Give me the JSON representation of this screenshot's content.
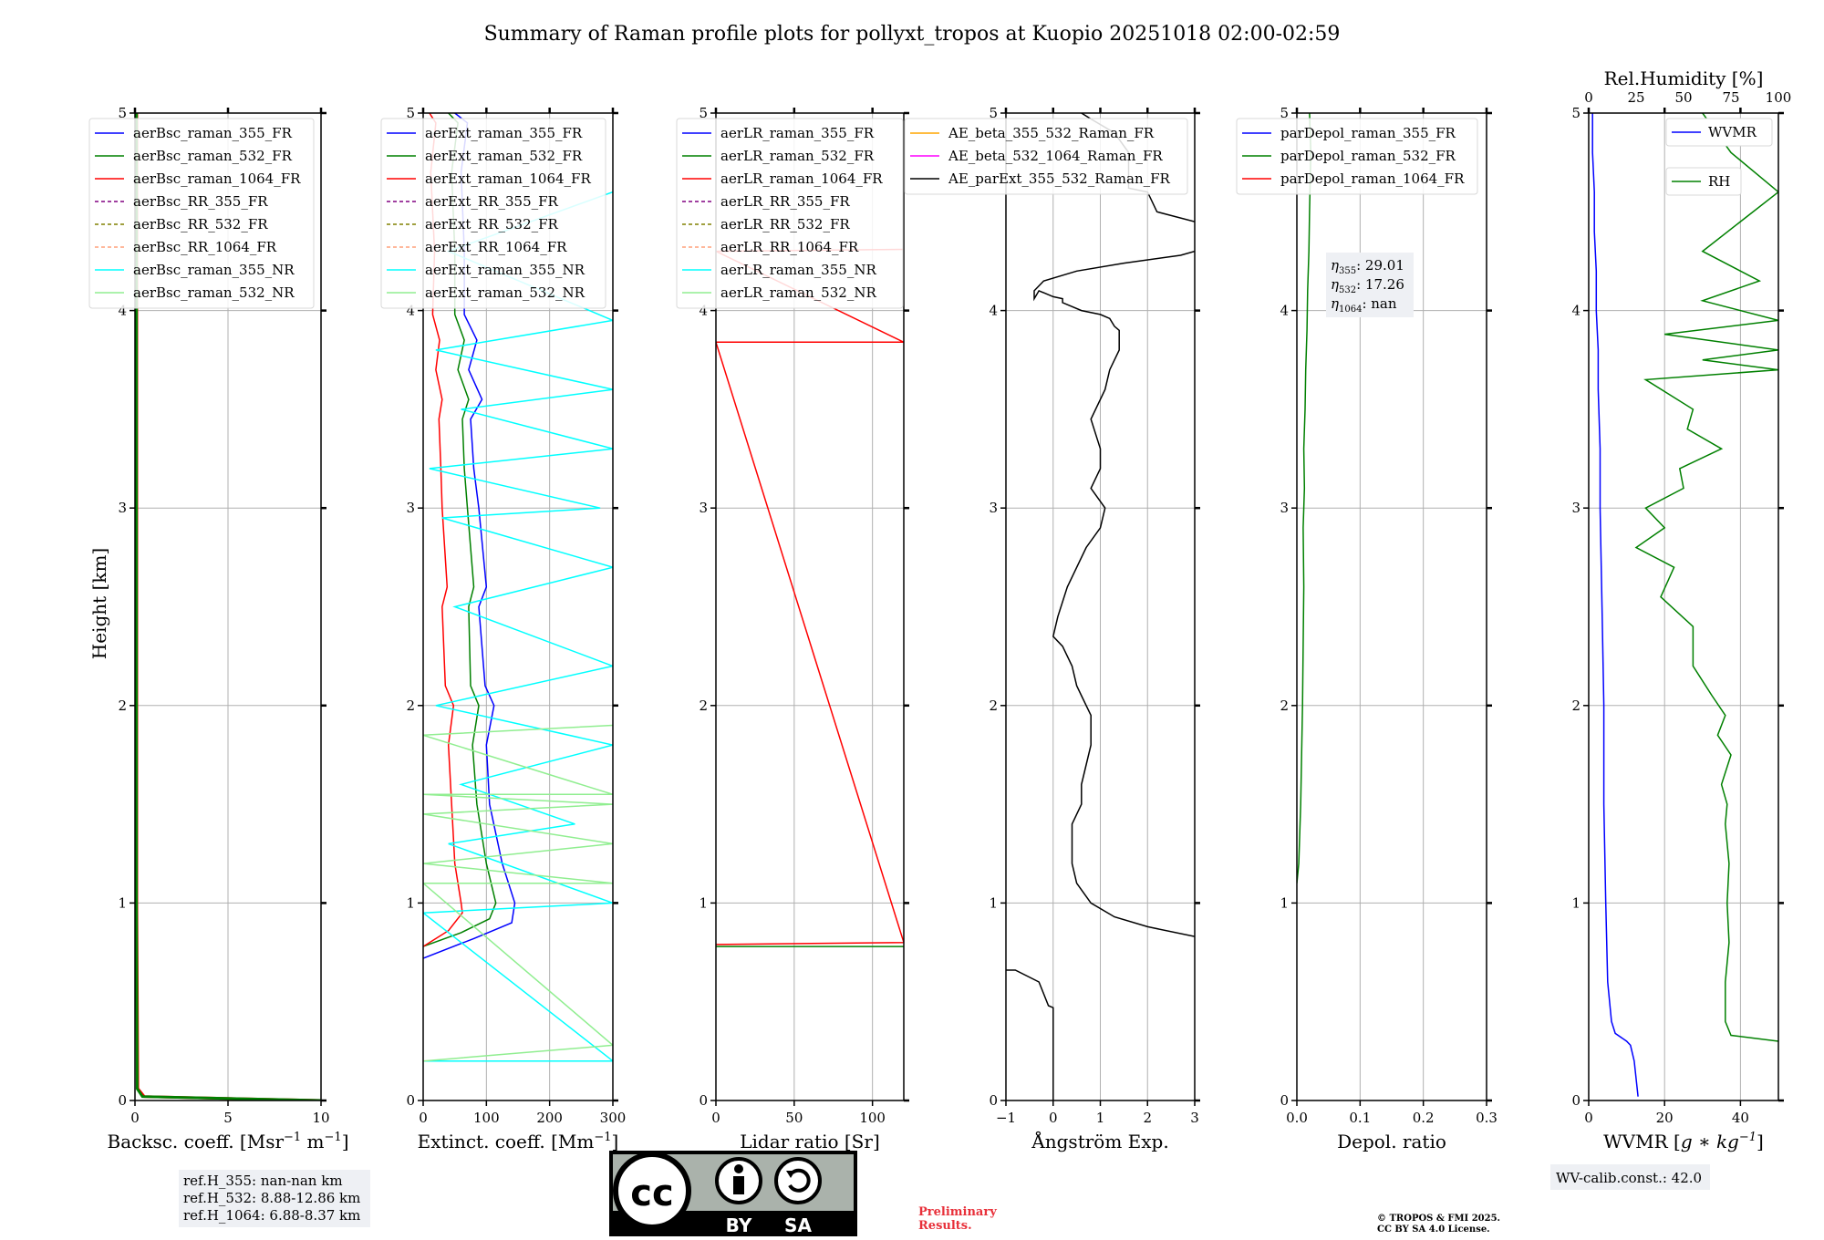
{
  "title": "Summary of Raman profile plots for pollyxt_tropos at Kuopio 20251018 02:00-02:59",
  "shared_ylabel": "Height [km]",
  "y_range": [
    0,
    5
  ],
  "y_ticks": [
    "0",
    "1",
    "2",
    "3",
    "4",
    "5"
  ],
  "colors": {
    "blue": "#0000ff",
    "green": "#008000",
    "red": "#ff0000",
    "purple": "#800080",
    "olive": "#808000",
    "salmon": "#ffa07a",
    "cyan": "#00ffff",
    "lightgreen": "#90ee90",
    "orange": "#ffa500",
    "magenta": "#ff00ff",
    "black": "#000000"
  },
  "chart_data": [
    {
      "type": "line",
      "xlabel": "Backsc. coeff. [Msr",
      "xlabel_sup1": "−1",
      "xlabel_mid": " m",
      "xlabel_sup2": "−1",
      "xlabel_end": "]",
      "xlim": [
        0,
        10
      ],
      "xticks": [
        "0",
        "5",
        "10"
      ],
      "grid": true,
      "legend_position": "top-right",
      "legend": [
        "aerBsc_raman_355_FR",
        "aerBsc_raman_532_FR",
        "aerBsc_raman_1064_FR",
        "aerBsc_RR_355_FR",
        "aerBsc_RR_532_FR",
        "aerBsc_RR_1064_FR",
        "aerBsc_raman_355_NR",
        "aerBsc_raman_532_NR"
      ],
      "series": [
        {
          "name": "aerBsc_raman_1064_FR",
          "x": [
            10,
            0.5,
            0.15,
            0.1,
            0.1
          ],
          "y": [
            0.0,
            0.02,
            0.06,
            1.0,
            5.0
          ]
        },
        {
          "name": "aerBsc_raman_532_FR",
          "x": [
            10,
            0.4,
            0.12,
            0.08,
            0.08
          ],
          "y": [
            0.0,
            0.02,
            0.06,
            1.0,
            5.0
          ]
        }
      ]
    },
    {
      "type": "line",
      "xlabel": "Extinct. coeff. [Mm",
      "xlabel_sup1": "−1",
      "xlabel_end": "]",
      "xlim": [
        0,
        300
      ],
      "xticks": [
        "0",
        "100",
        "200",
        "300"
      ],
      "grid": true,
      "legend_position": "top-right",
      "legend": [
        "aerExt_raman_355_FR",
        "aerExt_raman_532_FR",
        "aerExt_raman_1064_FR",
        "aerExt_RR_355_FR",
        "aerExt_RR_532_FR",
        "aerExt_RR_1064_FR",
        "aerExt_raman_355_NR",
        "aerExt_raman_532_NR"
      ],
      "series": [
        {
          "name": "aerExt_raman_355_FR",
          "x": [
            0,
            80,
            140,
            145,
            125,
            105,
            100,
            112,
            98,
            88,
            100,
            88,
            80,
            75,
            93,
            72,
            85,
            65,
            65,
            60,
            70,
            50
          ],
          "y": [
            0.72,
            0.82,
            0.9,
            1.0,
            1.2,
            1.5,
            1.8,
            2.0,
            2.1,
            2.5,
            2.6,
            3.0,
            3.2,
            3.45,
            3.55,
            3.7,
            3.85,
            3.98,
            4.3,
            4.7,
            4.95,
            5.0
          ]
        },
        {
          "name": "aerExt_raman_532_FR",
          "x": [
            0,
            60,
            105,
            115,
            100,
            85,
            78,
            88,
            75,
            72,
            80,
            70,
            65,
            62,
            72,
            55,
            65,
            50,
            50,
            45,
            55,
            40
          ],
          "y": [
            0.78,
            0.85,
            0.92,
            1.0,
            1.2,
            1.5,
            1.8,
            2.0,
            2.1,
            2.5,
            2.6,
            3.0,
            3.2,
            3.45,
            3.55,
            3.7,
            3.85,
            3.98,
            4.3,
            4.7,
            4.95,
            5.0
          ]
        },
        {
          "name": "aerExt_raman_1064_FR",
          "x": [
            0,
            40,
            62,
            60,
            50,
            45,
            40,
            48,
            35,
            30,
            38,
            30,
            28,
            25,
            30,
            20,
            26,
            15,
            18,
            12,
            20,
            10
          ],
          "y": [
            0.78,
            0.86,
            0.95,
            1.0,
            1.2,
            1.5,
            1.8,
            2.0,
            2.1,
            2.5,
            2.6,
            3.0,
            3.2,
            3.45,
            3.55,
            3.7,
            3.85,
            3.98,
            4.3,
            4.7,
            4.95,
            5.0
          ]
        },
        {
          "name": "aerExt_raman_355_NR",
          "x": [
            0,
            300,
            0,
            300,
            40,
            240,
            60,
            300,
            20,
            300,
            50,
            300,
            30,
            280,
            10,
            300,
            60,
            300,
            20,
            300,
            40,
            300
          ],
          "y": [
            0.2,
            0.2,
            0.95,
            1.0,
            1.3,
            1.4,
            1.6,
            1.8,
            2.0,
            2.2,
            2.5,
            2.7,
            2.95,
            3.0,
            3.2,
            3.3,
            3.5,
            3.6,
            3.8,
            3.95,
            4.3,
            4.6
          ]
        },
        {
          "name": "aerExt_raman_532_NR",
          "x": [
            0,
            300,
            0,
            300,
            0,
            300,
            0,
            300,
            0,
            300,
            0,
            300
          ],
          "y": [
            0.2,
            0.28,
            1.1,
            1.1,
            1.2,
            1.3,
            1.45,
            1.5,
            1.55,
            1.55,
            1.85,
            1.9
          ]
        }
      ]
    },
    {
      "type": "line",
      "xlabel": "Lidar ratio [Sr]",
      "xlim": [
        0,
        120
      ],
      "xticks": [
        "0",
        "50",
        "100"
      ],
      "grid": true,
      "legend_position": "top-right",
      "legend": [
        "aerLR_raman_355_FR",
        "aerLR_raman_532_FR",
        "aerLR_raman_1064_FR",
        "aerLR_RR_355_FR",
        "aerLR_RR_532_FR",
        "aerLR_RR_1064_FR",
        "aerLR_raman_355_NR",
        "aerLR_raman_532_NR"
      ],
      "series": [
        {
          "name": "aerLR_raman_532_FR",
          "x": [
            0,
            120
          ],
          "y": [
            0.78,
            0.78
          ]
        },
        {
          "name": "aerLR_raman_1064_FR",
          "x": [
            0,
            120,
            0,
            120,
            0,
            120
          ],
          "y": [
            0.79,
            0.8,
            3.84,
            3.84,
            4.3,
            4.31
          ]
        }
      ]
    },
    {
      "type": "line",
      "xlabel": "Ångström Exp.",
      "xlim": [
        -1,
        3
      ],
      "xticks": [
        "−1",
        "0",
        "1",
        "2",
        "3"
      ],
      "grid": true,
      "legend_position": "top",
      "legend": [
        "AE_beta_355_532_Raman_FR",
        "AE_beta_532_1064_Raman_FR",
        "AE_parExt_355_532_Raman_FR"
      ],
      "series": [
        {
          "name": "AE_parExt_355_532_Raman_FR",
          "x": [
            0.0,
            0.0,
            -0.1,
            -0.3,
            -0.8,
            -1.0
          ],
          "y": [
            0.0,
            0.47,
            0.48,
            0.6,
            0.66,
            0.66
          ]
        },
        {
          "name": "AE_parExt_355_532_Raman_FR",
          "x": [
            3.0,
            2.0,
            1.3,
            0.8,
            0.5,
            0.4,
            0.4,
            0.6,
            0.6,
            0.8,
            0.8,
            0.6,
            0.5,
            0.4,
            0.2,
            0.0,
            0.1,
            0.3,
            0.7,
            1.0,
            1.1,
            0.8,
            1.0,
            1.0,
            0.8,
            1.1,
            1.2,
            1.4,
            1.4,
            1.3,
            1.2,
            1.0,
            0.6,
            0.2,
            0.2,
            0.0,
            -0.3,
            -0.4,
            -0.4,
            -0.2,
            0.5,
            1.5,
            2.7,
            3.0
          ],
          "y": [
            0.83,
            0.88,
            0.93,
            1.0,
            1.1,
            1.2,
            1.4,
            1.5,
            1.6,
            1.8,
            1.95,
            2.05,
            2.1,
            2.2,
            2.3,
            2.35,
            2.45,
            2.6,
            2.8,
            2.9,
            3.0,
            3.1,
            3.2,
            3.3,
            3.45,
            3.6,
            3.7,
            3.8,
            3.9,
            3.92,
            3.96,
            3.98,
            4.0,
            4.04,
            4.06,
            4.07,
            4.1,
            4.06,
            4.1,
            4.15,
            4.2,
            4.24,
            4.28,
            4.3
          ]
        },
        {
          "name": "AE_parExt_355_532_Raman_FR",
          "x": [
            3.0,
            2.2,
            2.0,
            1.6,
            1.6,
            1.3,
            0.8,
            0.6
          ],
          "y": [
            4.45,
            4.5,
            4.6,
            4.62,
            4.8,
            4.9,
            4.97,
            5.0
          ]
        }
      ]
    },
    {
      "type": "line",
      "xlabel": "Depol. ratio",
      "xlim": [
        0.0,
        0.3
      ],
      "xticks": [
        "0.0",
        "0.1",
        "0.2",
        "0.3"
      ],
      "grid": true,
      "legend_position": "top",
      "legend": [
        "parDepol_raman_355_FR",
        "parDepol_raman_532_FR",
        "parDepol_raman_1064_FR"
      ],
      "annotation": {
        "eta355": "29.01",
        "eta532": "17.26",
        "eta1064": "nan"
      },
      "series": [
        {
          "name": "parDepol_raman_532_FR",
          "x": [
            0.0,
            0.003,
            0.006,
            0.009,
            0.01,
            0.011,
            0.01,
            0.012,
            0.011,
            0.013,
            0.014,
            0.016,
            0.017,
            0.019,
            0.02,
            0.022,
            0.02
          ],
          "y": [
            1.1,
            1.2,
            1.5,
            2.0,
            2.3,
            2.6,
            2.9,
            3.1,
            3.3,
            3.5,
            3.7,
            3.9,
            4.1,
            4.3,
            4.5,
            4.8,
            5.0
          ]
        }
      ]
    },
    {
      "type": "line",
      "xlabel": "WVMR [",
      "xlabel_italic": "g ∗ kg",
      "xlabel_sup1": "−1",
      "xlabel_end": "]",
      "xlim": [
        0,
        50
      ],
      "xticks": [
        "0",
        "20",
        "40"
      ],
      "x2label": "Rel.Humidity [%]",
      "x2lim": [
        0,
        100
      ],
      "x2ticks": [
        "0",
        "25",
        "50",
        "75",
        "100"
      ],
      "grid": true,
      "legend_position": "top-right",
      "legend": [
        "WVMR",
        "RH"
      ],
      "annotation": "WV-calib.const.: 42.0",
      "series": [
        {
          "name": "WVMR",
          "x": [
            13,
            12,
            11,
            10,
            7,
            6,
            5,
            4.5,
            4,
            4,
            3.5,
            3,
            3,
            2.5,
            2.5,
            2,
            2,
            1.5,
            1.5,
            1,
            1
          ],
          "y": [
            0.02,
            0.2,
            0.28,
            0.3,
            0.34,
            0.4,
            0.6,
            1.0,
            1.5,
            2.0,
            2.5,
            3.0,
            3.3,
            3.6,
            3.8,
            4.0,
            4.2,
            4.4,
            4.6,
            4.8,
            5.0
          ]
        },
        {
          "name": "RH",
          "x": [
            100,
            75,
            72,
            72,
            74,
            73,
            74,
            72,
            73,
            70,
            75,
            68,
            72,
            65,
            55,
            55,
            38,
            45,
            25,
            40,
            30,
            50,
            48,
            70,
            52,
            55,
            30,
            100,
            60,
            100,
            40,
            100,
            60,
            90,
            60,
            100,
            75,
            60
          ],
          "y": [
            0.3,
            0.33,
            0.4,
            0.6,
            0.8,
            1.0,
            1.2,
            1.4,
            1.5,
            1.6,
            1.75,
            1.85,
            1.95,
            2.05,
            2.2,
            2.4,
            2.55,
            2.7,
            2.8,
            2.9,
            3.0,
            3.1,
            3.2,
            3.3,
            3.4,
            3.5,
            3.65,
            3.7,
            3.75,
            3.8,
            3.88,
            3.95,
            4.05,
            4.15,
            4.3,
            4.6,
            4.8,
            5.0
          ]
        }
      ]
    }
  ],
  "reference_heights": [
    "ref.H_355: nan-nan km",
    "ref.H_532: 8.88-12.86 km",
    "ref.H_1064: 6.88-8.37 km"
  ],
  "license_logo": {
    "cc": "cc",
    "by": "BY",
    "sa": "SA"
  },
  "preliminary_note": [
    "Preliminary",
    "Results."
  ],
  "copyright": [
    "© TROPOS & FMI 2025.",
    "CC BY SA 4.0 License."
  ]
}
